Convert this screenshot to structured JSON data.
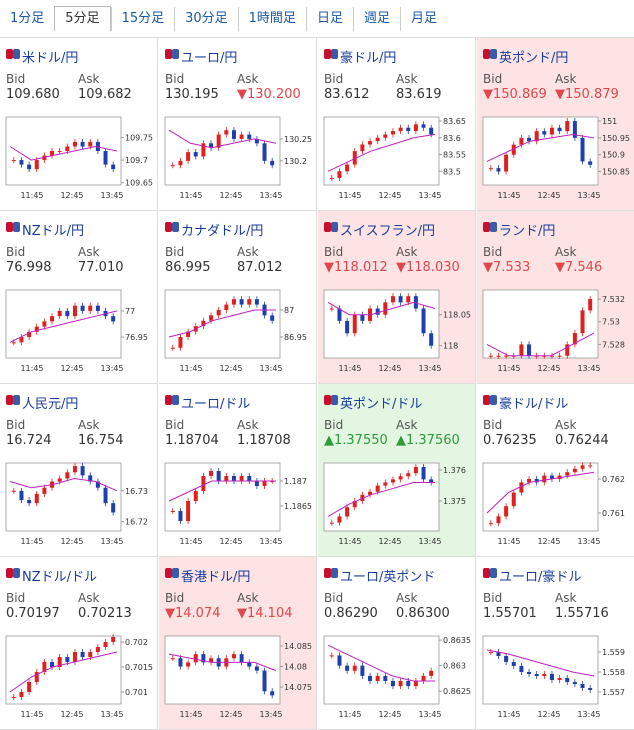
{
  "tabs": {
    "items": [
      "1分足",
      "5分足",
      "15分足",
      "30分足",
      "1時間足",
      "日足",
      "週足",
      "月足"
    ],
    "selected": 1
  },
  "tiles": [
    {
      "name": "米ドル/円",
      "bid_label": "Bid",
      "ask_label": "Ask",
      "bid": "109.680",
      "ask": "109.682",
      "highlight": "none",
      "chart": {
        "ylim": [
          109.645,
          109.795
        ],
        "yticks": [
          109.75,
          109.7,
          109.65
        ],
        "xlabels": [
          "11:45",
          "12:45",
          "13:45"
        ],
        "closes": [
          109.7,
          109.69,
          109.68,
          109.7,
          109.71,
          109.72,
          109.72,
          109.73,
          109.74,
          109.73,
          109.74,
          109.72,
          109.69,
          109.68
        ],
        "ma": [
          109.73,
          109.7,
          109.71,
          109.72,
          109.73,
          109.72
        ]
      }
    },
    {
      "name": "ユーロ/円",
      "bid_label": "Bid",
      "ask_label": "Ask",
      "bid": "130.195",
      "ask": "▼130.200",
      "highlight": "none",
      "chart": {
        "ylim": [
          130.145,
          130.3
        ],
        "yticks": [
          130.25,
          130.2
        ],
        "xlabels": [
          "11:45",
          "12:45",
          "13:45"
        ],
        "closes": [
          130.19,
          130.2,
          130.22,
          130.21,
          130.24,
          130.23,
          130.26,
          130.27,
          130.25,
          130.26,
          130.25,
          130.24,
          130.2,
          130.19
        ],
        "ma": [
          130.27,
          130.24,
          130.23,
          130.24,
          130.25,
          130.24
        ]
      }
    },
    {
      "name": "豪ドル/円",
      "bid_label": "Bid",
      "ask_label": "Ask",
      "bid": "83.612",
      "ask": "83.619",
      "highlight": "none",
      "chart": {
        "ylim": [
          83.459,
          83.662
        ],
        "yticks": [
          83.65,
          83.6,
          83.55,
          83.5
        ],
        "xlabels": [
          "11:45",
          "12:45",
          "13:45"
        ],
        "closes": [
          83.48,
          83.5,
          83.52,
          83.56,
          83.58,
          83.59,
          83.6,
          83.61,
          83.62,
          83.63,
          83.62,
          83.64,
          83.63,
          83.61
        ],
        "ma": [
          83.5,
          83.53,
          83.56,
          83.58,
          83.6,
          83.61
        ]
      }
    },
    {
      "name": "英ポンド/円",
      "bid_label": "Bid",
      "ask_label": "Ask",
      "bid": "▼150.869",
      "ask": "▼150.879",
      "highlight": "down",
      "chart": {
        "ylim": [
          150.81,
          151.012
        ],
        "yticks": [
          151,
          150.95,
          150.9,
          150.85
        ],
        "xlabels": [
          "11:45",
          "12:45",
          "13:45"
        ],
        "closes": [
          150.86,
          150.85,
          150.9,
          150.93,
          150.95,
          150.94,
          150.97,
          150.96,
          150.98,
          150.97,
          151.0,
          150.95,
          150.88,
          150.87
        ],
        "ma": [
          150.88,
          150.91,
          150.94,
          150.95,
          150.96,
          150.95
        ]
      }
    },
    {
      "name": "NZドル/円",
      "bid_label": "Bid",
      "ask_label": "Ask",
      "bid": "76.998",
      "ask": "77.010",
      "highlight": "none",
      "chart": {
        "ylim": [
          76.91,
          77.04
        ],
        "yticks": [
          77,
          76.95
        ],
        "xlabels": [
          "11:45",
          "12:45",
          "13:45"
        ],
        "closes": [
          76.94,
          76.95,
          76.96,
          76.97,
          76.98,
          76.99,
          77.0,
          76.99,
          77.01,
          77.0,
          77.01,
          77.0,
          76.99,
          76.98
        ],
        "ma": [
          76.94,
          76.96,
          76.97,
          76.98,
          76.99,
          77.0
        ]
      }
    },
    {
      "name": "カナダドル/円",
      "bid_label": "Bid",
      "ask_label": "Ask",
      "bid": "86.995",
      "ask": "87.012",
      "highlight": "none",
      "chart": {
        "ylim": [
          86.911,
          87.037
        ],
        "yticks": [
          87,
          86.95
        ],
        "xlabels": [
          "11:45",
          "12:45",
          "13:45"
        ],
        "closes": [
          86.93,
          86.95,
          86.96,
          86.97,
          86.98,
          86.99,
          87.0,
          87.01,
          87.02,
          87.01,
          87.02,
          87.01,
          86.99,
          86.98
        ],
        "ma": [
          86.95,
          86.96,
          86.98,
          86.99,
          87.0,
          87.0
        ]
      }
    },
    {
      "name": "スイスフラン/円",
      "bid_label": "Bid",
      "ask_label": "Ask",
      "bid": "▼118.012",
      "ask": "▼118.030",
      "highlight": "down",
      "chart": {
        "ylim": [
          117.98,
          118.09
        ],
        "yticks": [
          118.05,
          118
        ],
        "xlabels": [
          "11:45",
          "12:45",
          "13:45"
        ],
        "closes": [
          118.06,
          118.04,
          118.02,
          118.05,
          118.04,
          118.06,
          118.05,
          118.07,
          118.08,
          118.07,
          118.08,
          118.06,
          118.02,
          118.0
        ],
        "ma": [
          118.07,
          118.05,
          118.05,
          118.06,
          118.07,
          118.06
        ]
      }
    },
    {
      "name": "ランド/円",
      "bid_label": "Bid",
      "ask_label": "Ask",
      "bid": "▼7.533",
      "ask": "▼7.546",
      "highlight": "down",
      "chart": {
        "ylim": [
          7.5268,
          7.5328
        ],
        "yticks": [
          7.532,
          7.53,
          7.528
        ],
        "xlabels": [
          "11:45",
          "12:45",
          "13:45"
        ],
        "closes": [
          7.527,
          7.527,
          7.527,
          7.527,
          7.528,
          7.527,
          7.527,
          7.527,
          7.527,
          7.527,
          7.528,
          7.529,
          7.531,
          7.532
        ],
        "ma": [
          7.528,
          7.527,
          7.527,
          7.527,
          7.528,
          7.529
        ]
      }
    },
    {
      "name": "人民元/円",
      "bid_label": "Bid",
      "ask_label": "Ask",
      "bid": "16.724",
      "ask": "16.754",
      "highlight": "none",
      "chart": {
        "ylim": [
          16.717,
          16.739
        ],
        "yticks": [
          16.73,
          16.72
        ],
        "xlabels": [
          "11:45",
          "12:45",
          "13:45"
        ],
        "closes": [
          16.73,
          16.727,
          16.726,
          16.729,
          16.731,
          16.733,
          16.734,
          16.736,
          16.738,
          16.735,
          16.733,
          16.731,
          16.726,
          16.723
        ],
        "ma": [
          16.733,
          16.731,
          16.732,
          16.734,
          16.733,
          16.73
        ]
      }
    },
    {
      "name": "ユーロ/ドル",
      "bid_label": "Bid",
      "ask_label": "Ask",
      "bid": "1.18704",
      "ask": "1.18708",
      "highlight": "none",
      "chart": {
        "ylim": [
          1.186,
          1.18736
        ],
        "yticks": [
          1.187,
          1.1865
        ],
        "xlabels": [
          "11:45",
          "12:45",
          "13:45"
        ],
        "closes": [
          1.1864,
          1.1862,
          1.1866,
          1.1868,
          1.1871,
          1.1872,
          1.187,
          1.1871,
          1.187,
          1.1871,
          1.187,
          1.1869,
          1.187,
          1.187
        ],
        "ma": [
          1.1866,
          1.1868,
          1.187,
          1.187,
          1.187,
          1.187
        ]
      }
    },
    {
      "name": "英ポンド/ドル",
      "bid_label": "Bid",
      "ask_label": "Ask",
      "bid": "▲1.37550",
      "ask": "▲1.37560",
      "highlight": "up",
      "chart": {
        "ylim": [
          1.37403,
          1.37623
        ],
        "yticks": [
          1.376,
          1.375
        ],
        "xlabels": [
          "11:45",
          "12:45",
          "13:45"
        ],
        "closes": [
          1.3743,
          1.3745,
          1.3748,
          1.375,
          1.3752,
          1.3753,
          1.3755,
          1.3756,
          1.3757,
          1.3758,
          1.3759,
          1.3761,
          1.3757,
          1.3756
        ],
        "ma": [
          1.3745,
          1.3749,
          1.3752,
          1.3754,
          1.3756,
          1.3756
        ]
      }
    },
    {
      "name": "豪ドル/ドル",
      "bid_label": "Bid",
      "ask_label": "Ask",
      "bid": "0.76235",
      "ask": "0.76244",
      "highlight": "none",
      "chart": {
        "ylim": [
          0.76047,
          0.76247
        ],
        "yticks": [
          0.762,
          0.761
        ],
        "xlabels": [
          "11:45",
          "12:45",
          "13:45"
        ],
        "closes": [
          0.7607,
          0.7609,
          0.7612,
          0.7616,
          0.7619,
          0.762,
          0.7619,
          0.7621,
          0.762,
          0.7621,
          0.7622,
          0.7623,
          0.7624,
          0.7624
        ],
        "ma": [
          0.761,
          0.7616,
          0.7619,
          0.762,
          0.7621,
          0.7622
        ]
      }
    },
    {
      "name": "NZドル/ドル",
      "bid_label": "Bid",
      "ask_label": "Ask",
      "bid": "0.70197",
      "ask": "0.70213",
      "highlight": "none",
      "chart": {
        "ylim": [
          0.70076,
          0.70212
        ],
        "yticks": [
          0.702,
          0.7015,
          0.701
        ],
        "xlabels": [
          "11:45",
          "12:45",
          "13:45"
        ],
        "closes": [
          0.7009,
          0.701,
          0.7012,
          0.7014,
          0.7016,
          0.7015,
          0.7017,
          0.7016,
          0.7018,
          0.7017,
          0.7018,
          0.7019,
          0.702,
          0.7021
        ],
        "ma": [
          0.701,
          0.7013,
          0.7015,
          0.7016,
          0.7017,
          0.7018
        ]
      }
    },
    {
      "name": "香港ドル/円",
      "bid_label": "Bid",
      "ask_label": "Ask",
      "bid": "▼14.074",
      "ask": "▼14.104",
      "highlight": "down",
      "chart": {
        "ylim": [
          14.0709,
          14.0874
        ],
        "yticks": [
          14.085,
          14.08,
          14.075
        ],
        "xlabels": [
          "11:45",
          "12:45",
          "13:45"
        ],
        "closes": [
          14.082,
          14.08,
          14.081,
          14.083,
          14.081,
          14.082,
          14.08,
          14.082,
          14.083,
          14.081,
          14.08,
          14.079,
          14.074,
          14.073
        ],
        "ma": [
          14.083,
          14.082,
          14.081,
          14.081,
          14.081,
          14.079
        ]
      }
    },
    {
      "name": "ユーロ/英ポンド",
      "bid_label": "Bid",
      "ask_label": "Ask",
      "bid": "0.86290",
      "ask": "0.86300",
      "highlight": "none",
      "chart": {
        "ylim": [
          0.86225,
          0.86358
        ],
        "yticks": [
          0.8635,
          0.863,
          0.8625
        ],
        "xlabels": [
          "11:45",
          "12:45",
          "13:45"
        ],
        "closes": [
          0.8632,
          0.863,
          0.8629,
          0.863,
          0.8628,
          0.8627,
          0.8628,
          0.8627,
          0.8626,
          0.8627,
          0.8626,
          0.8627,
          0.8628,
          0.8629
        ],
        "ma": [
          0.8634,
          0.8632,
          0.863,
          0.8628,
          0.8627,
          0.8627
        ]
      }
    },
    {
      "name": "ユーロ/豪ドル",
      "bid_label": "Bid",
      "ask_label": "Ask",
      "bid": "1.55701",
      "ask": "1.55716",
      "highlight": "none",
      "chart": {
        "ylim": [
          1.5564,
          1.5598
        ],
        "yticks": [
          1.559,
          1.558,
          1.557
        ],
        "xlabels": [
          "11:45",
          "12:45",
          "13:45"
        ],
        "closes": [
          1.559,
          1.5588,
          1.5585,
          1.5583,
          1.558,
          1.5579,
          1.5578,
          1.5579,
          1.5576,
          1.5577,
          1.5575,
          1.5574,
          1.5572,
          1.5571
        ],
        "ma": [
          1.5591,
          1.5589,
          1.5586,
          1.5583,
          1.558,
          1.5578
        ]
      }
    }
  ]
}
